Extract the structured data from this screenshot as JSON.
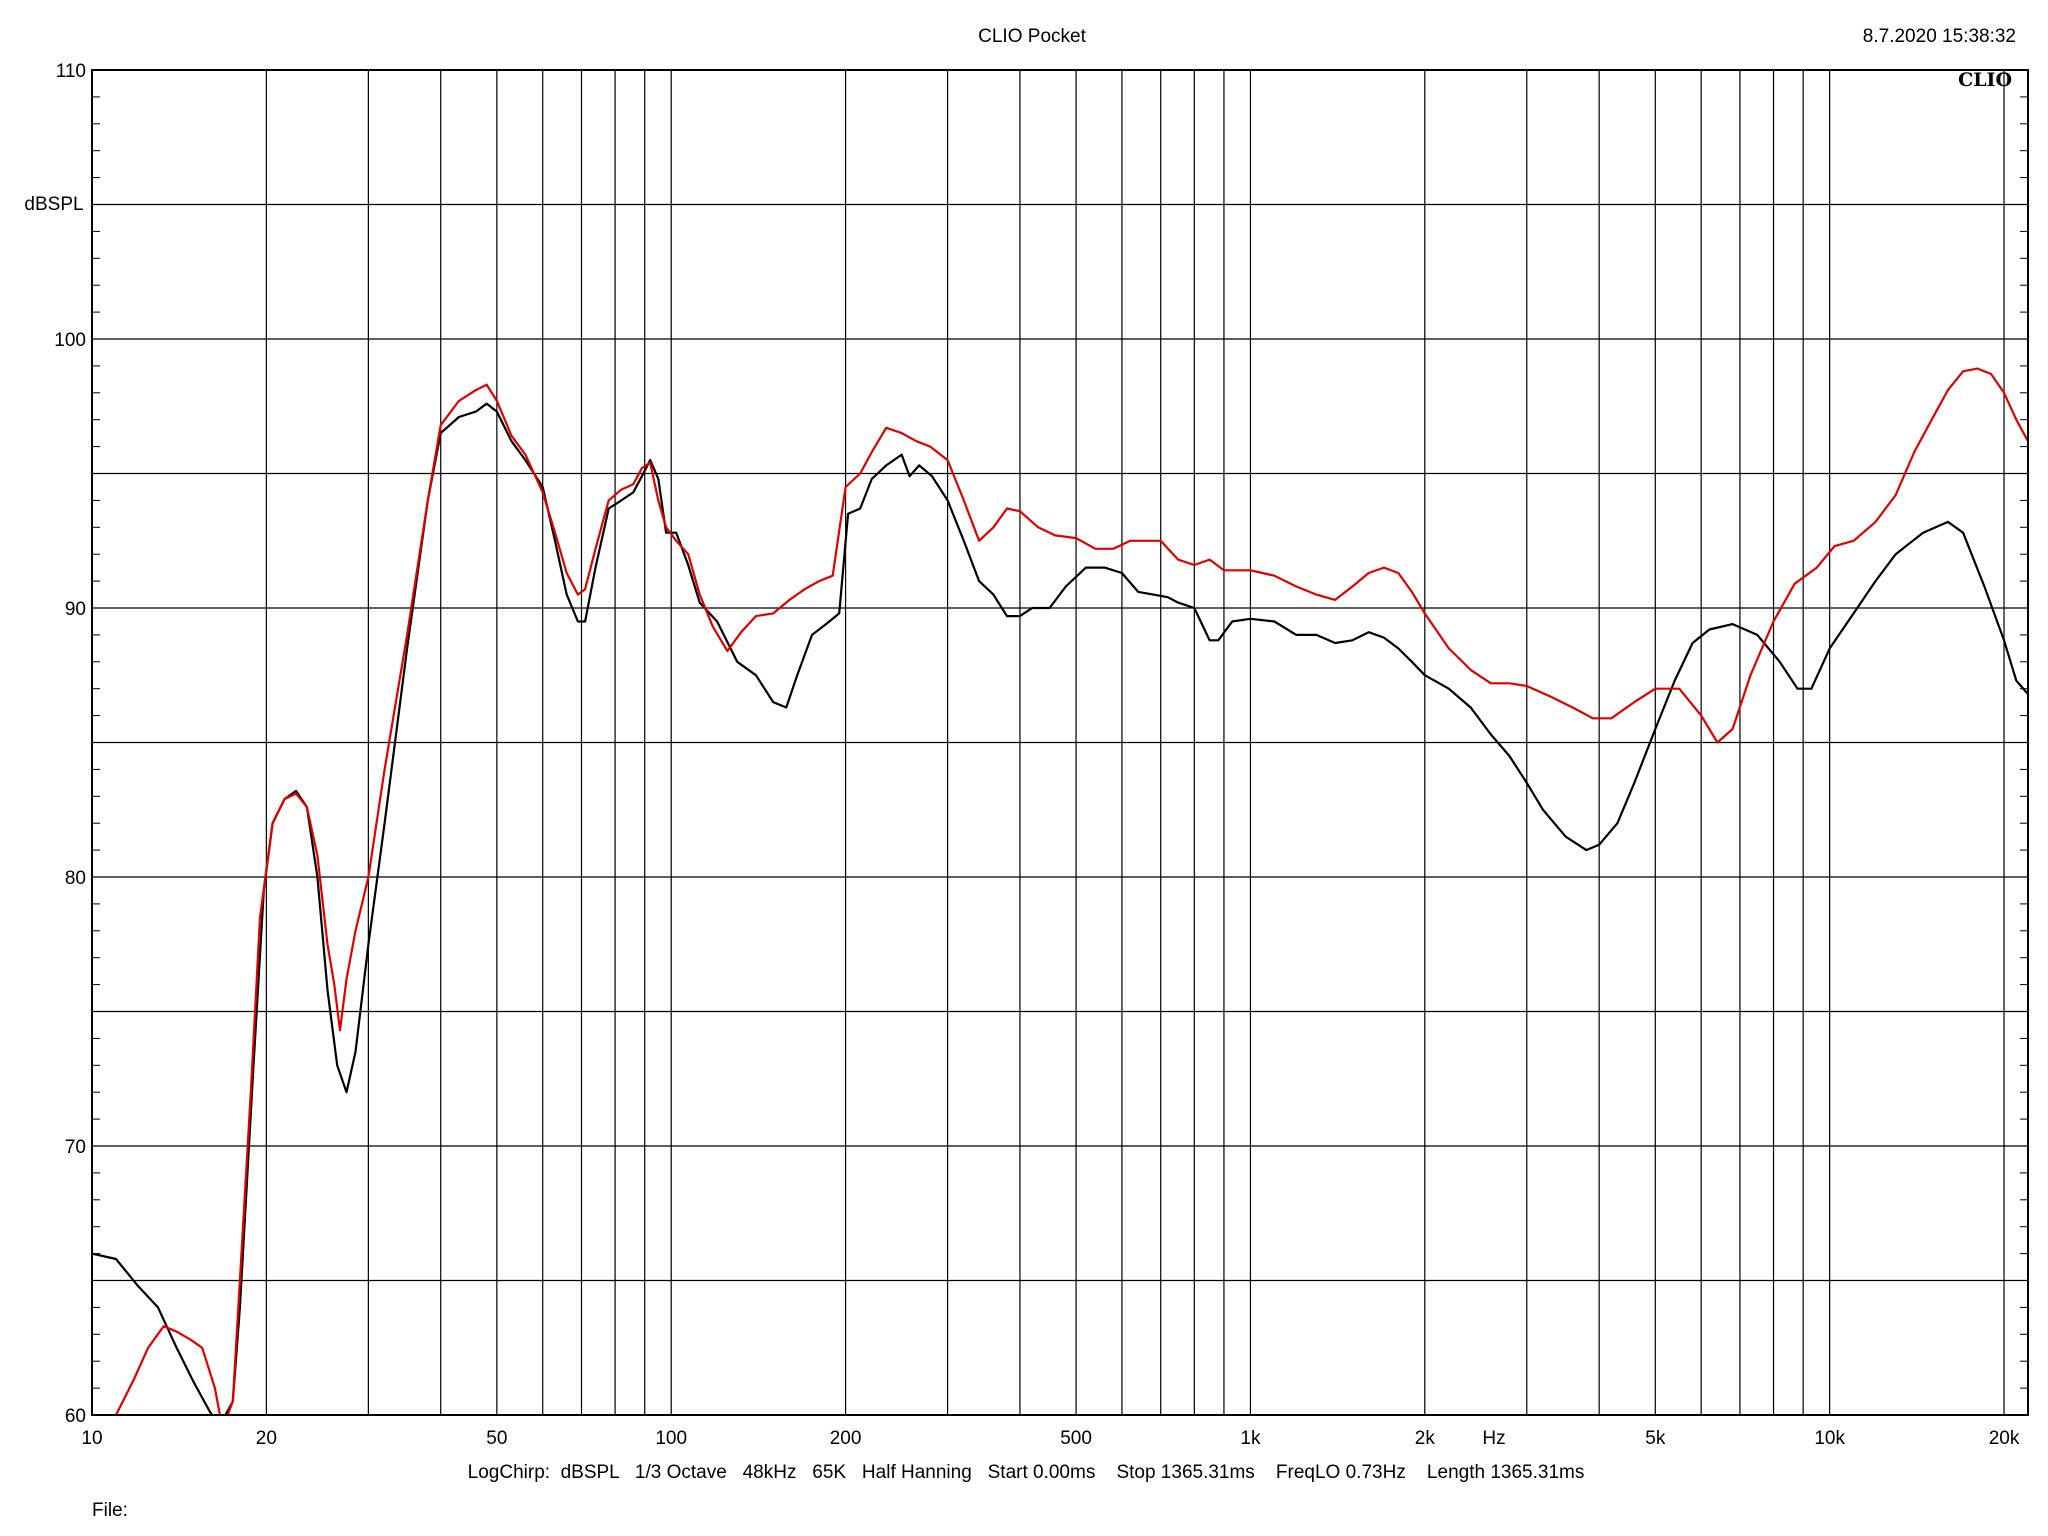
{
  "header": {
    "title": "CLIO Pocket",
    "timestamp": "8.7.2020 15:38:32",
    "brand": "CLIO"
  },
  "footer": {
    "settings": "LogChirp:  dBSPL   1/3 Octave   48kHz   65K   Half Hanning   Start 0.00ms    Stop 1365.31ms    FreqLO 0.73Hz    Length 1365.31ms",
    "file_label": "File:"
  },
  "chart_data": {
    "type": "line",
    "ylabel": "dBSPL",
    "xlabel": "Hz",
    "x_scale": "log",
    "xlim": [
      10,
      22000
    ],
    "ylim": [
      60,
      110
    ],
    "grid": true,
    "x_ticks": [
      {
        "value": 10,
        "label": "10"
      },
      {
        "value": 20,
        "label": "20"
      },
      {
        "value": 50,
        "label": "50"
      },
      {
        "value": 100,
        "label": "100"
      },
      {
        "value": 200,
        "label": "200"
      },
      {
        "value": 500,
        "label": "500"
      },
      {
        "value": 1000,
        "label": "1k"
      },
      {
        "value": 2000,
        "label": "2k"
      },
      {
        "value": 5000,
        "label": "5k"
      },
      {
        "value": 10000,
        "label": "10k"
      },
      {
        "value": 20000,
        "label": "20k"
      }
    ],
    "x_gridlines": [
      10,
      20,
      30,
      40,
      50,
      60,
      70,
      80,
      90,
      100,
      200,
      300,
      400,
      500,
      600,
      700,
      800,
      900,
      1000,
      2000,
      3000,
      4000,
      5000,
      6000,
      7000,
      8000,
      9000,
      10000,
      20000
    ],
    "y_ticks": [
      {
        "value": 60,
        "label": "60"
      },
      {
        "value": 70,
        "label": "70"
      },
      {
        "value": 80,
        "label": "80"
      },
      {
        "value": 90,
        "label": "90"
      },
      {
        "value": 100,
        "label": "100"
      },
      {
        "value": 110,
        "label": "110"
      }
    ],
    "y_gridlines": [
      60,
      65,
      70,
      75,
      80,
      85,
      90,
      95,
      100,
      105,
      110
    ],
    "series": [
      {
        "color": "#000000",
        "points": [
          [
            10,
            66.0
          ],
          [
            11,
            65.8
          ],
          [
            12,
            64.8
          ],
          [
            13,
            64.0
          ],
          [
            14,
            62.5
          ],
          [
            15,
            61.2
          ],
          [
            16,
            60.1
          ],
          [
            16.6,
            59.6
          ],
          [
            17.5,
            60.5
          ],
          [
            18,
            64.0
          ],
          [
            19,
            73.0
          ],
          [
            19.8,
            79.5
          ],
          [
            20.5,
            82.0
          ],
          [
            21.5,
            82.9
          ],
          [
            22.5,
            83.2
          ],
          [
            23.5,
            82.6
          ],
          [
            24.5,
            80.0
          ],
          [
            25.5,
            75.8
          ],
          [
            26.5,
            73.0
          ],
          [
            27.5,
            72.0
          ],
          [
            28.5,
            73.5
          ],
          [
            30,
            77.5
          ],
          [
            32,
            82.0
          ],
          [
            35,
            88.5
          ],
          [
            38,
            94.0
          ],
          [
            40,
            96.5
          ],
          [
            43,
            97.1
          ],
          [
            46,
            97.3
          ],
          [
            48,
            97.6
          ],
          [
            50,
            97.3
          ],
          [
            53,
            96.2
          ],
          [
            56,
            95.5
          ],
          [
            60,
            94.5
          ],
          [
            63,
            92.5
          ],
          [
            66,
            90.5
          ],
          [
            69,
            89.5
          ],
          [
            71,
            89.5
          ],
          [
            74,
            91.5
          ],
          [
            78,
            93.7
          ],
          [
            82,
            94.0
          ],
          [
            86,
            94.3
          ],
          [
            89,
            94.9
          ],
          [
            92,
            95.5
          ],
          [
            95,
            94.8
          ],
          [
            98,
            92.8
          ],
          [
            102,
            92.8
          ],
          [
            107,
            91.6
          ],
          [
            112,
            90.2
          ],
          [
            120,
            89.5
          ],
          [
            130,
            88.0
          ],
          [
            140,
            87.5
          ],
          [
            150,
            86.5
          ],
          [
            158,
            86.3
          ],
          [
            165,
            87.5
          ],
          [
            175,
            89.0
          ],
          [
            185,
            89.4
          ],
          [
            195,
            89.8
          ],
          [
            202,
            93.5
          ],
          [
            212,
            93.7
          ],
          [
            222,
            94.8
          ],
          [
            235,
            95.3
          ],
          [
            250,
            95.7
          ],
          [
            258,
            94.9
          ],
          [
            268,
            95.3
          ],
          [
            282,
            94.9
          ],
          [
            300,
            94.0
          ],
          [
            320,
            92.5
          ],
          [
            340,
            91.0
          ],
          [
            360,
            90.5
          ],
          [
            380,
            89.7
          ],
          [
            400,
            89.7
          ],
          [
            420,
            90.0
          ],
          [
            450,
            90.0
          ],
          [
            480,
            90.8
          ],
          [
            520,
            91.5
          ],
          [
            560,
            91.5
          ],
          [
            600,
            91.3
          ],
          [
            640,
            90.6
          ],
          [
            680,
            90.5
          ],
          [
            720,
            90.4
          ],
          [
            750,
            90.2
          ],
          [
            800,
            90.0
          ],
          [
            850,
            88.8
          ],
          [
            880,
            88.8
          ],
          [
            930,
            89.5
          ],
          [
            1000,
            89.6
          ],
          [
            1100,
            89.5
          ],
          [
            1200,
            89.0
          ],
          [
            1300,
            89.0
          ],
          [
            1400,
            88.7
          ],
          [
            1500,
            88.8
          ],
          [
            1600,
            89.1
          ],
          [
            1700,
            88.9
          ],
          [
            1800,
            88.5
          ],
          [
            1900,
            88.0
          ],
          [
            2000,
            87.5
          ],
          [
            2200,
            87.0
          ],
          [
            2400,
            86.3
          ],
          [
            2600,
            85.3
          ],
          [
            2800,
            84.5
          ],
          [
            3000,
            83.5
          ],
          [
            3200,
            82.5
          ],
          [
            3500,
            81.5
          ],
          [
            3800,
            81.0
          ],
          [
            4000,
            81.2
          ],
          [
            4300,
            82.0
          ],
          [
            4600,
            83.5
          ],
          [
            5000,
            85.5
          ],
          [
            5400,
            87.3
          ],
          [
            5800,
            88.7
          ],
          [
            6200,
            89.2
          ],
          [
            6800,
            89.4
          ],
          [
            7500,
            89.0
          ],
          [
            8200,
            88.0
          ],
          [
            8800,
            87.0
          ],
          [
            9300,
            87.0
          ],
          [
            10000,
            88.5
          ],
          [
            11000,
            89.8
          ],
          [
            12000,
            91.0
          ],
          [
            13000,
            92.0
          ],
          [
            14500,
            92.8
          ],
          [
            16000,
            93.2
          ],
          [
            17000,
            92.8
          ],
          [
            18500,
            90.8
          ],
          [
            20000,
            88.8
          ],
          [
            21000,
            87.3
          ],
          [
            22000,
            86.8
          ]
        ]
      },
      {
        "color": "#e00000",
        "points": [
          [
            11,
            60.0
          ],
          [
            11.8,
            61.3
          ],
          [
            12.5,
            62.5
          ],
          [
            13.3,
            63.3
          ],
          [
            14,
            63.1
          ],
          [
            14.8,
            62.8
          ],
          [
            15.5,
            62.5
          ],
          [
            16.3,
            61.0
          ],
          [
            16.8,
            59.5
          ],
          [
            17.5,
            60.5
          ],
          [
            18,
            65.0
          ],
          [
            18.8,
            72.0
          ],
          [
            19.5,
            78.5
          ],
          [
            20.5,
            82.0
          ],
          [
            21.5,
            82.9
          ],
          [
            22.5,
            83.1
          ],
          [
            23.5,
            82.6
          ],
          [
            24.5,
            80.8
          ],
          [
            25.5,
            77.5
          ],
          [
            26.2,
            76.0
          ],
          [
            26.8,
            74.3
          ],
          [
            27.5,
            76.2
          ],
          [
            28.5,
            78.0
          ],
          [
            30,
            80.0
          ],
          [
            32,
            84.0
          ],
          [
            35,
            89.0
          ],
          [
            38,
            94.0
          ],
          [
            40,
            96.8
          ],
          [
            43,
            97.7
          ],
          [
            46,
            98.1
          ],
          [
            48,
            98.3
          ],
          [
            50,
            97.7
          ],
          [
            53,
            96.4
          ],
          [
            56,
            95.7
          ],
          [
            60,
            94.3
          ],
          [
            63,
            92.8
          ],
          [
            66,
            91.3
          ],
          [
            69,
            90.5
          ],
          [
            71,
            90.7
          ],
          [
            74,
            92.2
          ],
          [
            78,
            94.0
          ],
          [
            82,
            94.4
          ],
          [
            86,
            94.6
          ],
          [
            89,
            95.2
          ],
          [
            92,
            95.4
          ],
          [
            95,
            94.0
          ],
          [
            98,
            93.0
          ],
          [
            102,
            92.5
          ],
          [
            107,
            92.0
          ],
          [
            112,
            90.5
          ],
          [
            118,
            89.3
          ],
          [
            125,
            88.4
          ],
          [
            132,
            89.1
          ],
          [
            140,
            89.7
          ],
          [
            150,
            89.8
          ],
          [
            160,
            90.3
          ],
          [
            170,
            90.7
          ],
          [
            180,
            91.0
          ],
          [
            190,
            91.2
          ],
          [
            200,
            94.5
          ],
          [
            212,
            95.0
          ],
          [
            222,
            95.8
          ],
          [
            235,
            96.7
          ],
          [
            250,
            96.5
          ],
          [
            265,
            96.2
          ],
          [
            280,
            96.0
          ],
          [
            300,
            95.5
          ],
          [
            320,
            94.0
          ],
          [
            340,
            92.5
          ],
          [
            360,
            93.0
          ],
          [
            380,
            93.7
          ],
          [
            400,
            93.6
          ],
          [
            430,
            93.0
          ],
          [
            460,
            92.7
          ],
          [
            500,
            92.6
          ],
          [
            540,
            92.2
          ],
          [
            580,
            92.2
          ],
          [
            620,
            92.5
          ],
          [
            660,
            92.5
          ],
          [
            700,
            92.5
          ],
          [
            750,
            91.8
          ],
          [
            800,
            91.6
          ],
          [
            850,
            91.8
          ],
          [
            900,
            91.4
          ],
          [
            1000,
            91.4
          ],
          [
            1100,
            91.2
          ],
          [
            1200,
            90.8
          ],
          [
            1300,
            90.5
          ],
          [
            1400,
            90.3
          ],
          [
            1500,
            90.8
          ],
          [
            1600,
            91.3
          ],
          [
            1700,
            91.5
          ],
          [
            1800,
            91.3
          ],
          [
            1900,
            90.6
          ],
          [
            2000,
            89.8
          ],
          [
            2200,
            88.5
          ],
          [
            2400,
            87.7
          ],
          [
            2600,
            87.2
          ],
          [
            2800,
            87.2
          ],
          [
            3000,
            87.1
          ],
          [
            3300,
            86.7
          ],
          [
            3600,
            86.3
          ],
          [
            3900,
            85.9
          ],
          [
            4200,
            85.9
          ],
          [
            4600,
            86.5
          ],
          [
            5000,
            87.0
          ],
          [
            5500,
            87.0
          ],
          [
            6000,
            86.0
          ],
          [
            6400,
            85.0
          ],
          [
            6800,
            85.5
          ],
          [
            7300,
            87.5
          ],
          [
            8000,
            89.5
          ],
          [
            8700,
            90.9
          ],
          [
            9500,
            91.5
          ],
          [
            10200,
            92.3
          ],
          [
            11000,
            92.5
          ],
          [
            12000,
            93.2
          ],
          [
            13000,
            94.2
          ],
          [
            14000,
            95.8
          ],
          [
            15000,
            97.0
          ],
          [
            16000,
            98.1
          ],
          [
            17000,
            98.8
          ],
          [
            18000,
            98.9
          ],
          [
            19000,
            98.7
          ],
          [
            20000,
            98.0
          ],
          [
            21000,
            97.0
          ],
          [
            22000,
            96.2
          ]
        ]
      }
    ]
  }
}
